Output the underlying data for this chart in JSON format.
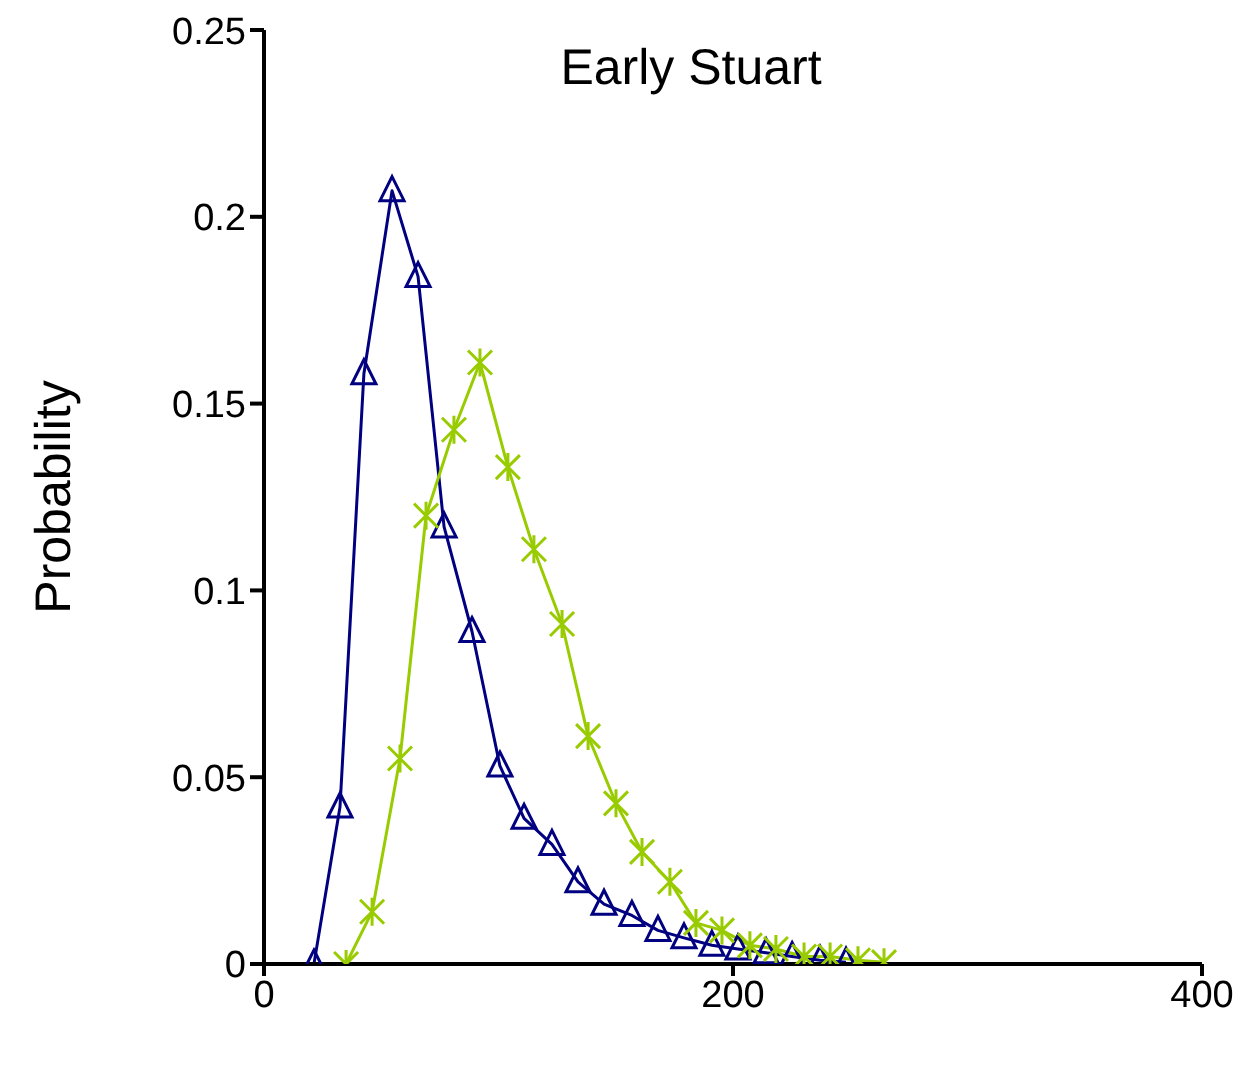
{
  "chart_data": {
    "type": "line",
    "title": "Early Stuart",
    "ylabel": "Probability",
    "xlim": [
      0,
      400
    ],
    "xticks": [
      0,
      200,
      400
    ],
    "ylim": [
      0,
      0.25
    ],
    "yticks": [
      0,
      0.05,
      0.1,
      0.15,
      0.2,
      0.25
    ],
    "grid": false,
    "series": [
      {
        "color": "#000080",
        "marker": "triangle",
        "x": [
          21.3,
          32.4,
          42.6,
          54.6,
          65.7,
          76.8,
          88.7,
          100.6,
          110.9,
          122.8,
          133.9,
          145,
          156.9,
          168,
          179.1,
          191,
          202.1,
          214.1,
          225.2,
          237.1,
          248.2
        ],
        "values": [
          0,
          0.042,
          0.158,
          0.207,
          0.184,
          0.117,
          0.089,
          0.053,
          0.039,
          0.032,
          0.022,
          0.016,
          0.013,
          0.009,
          0.007,
          0.005,
          0.004,
          0.003,
          0.002,
          0.001,
          0.0005
        ]
      },
      {
        "color": "#99cc00",
        "marker": "cross",
        "x": [
          35,
          46.1,
          58,
          69.1,
          81,
          92.1,
          104,
          115.1,
          127.1,
          138.2,
          150.1,
          161.2,
          173.1,
          184.2,
          195.3,
          207.2,
          218.3,
          230.3,
          241.4,
          253.3,
          264.4
        ],
        "values": [
          0,
          0.014,
          0.055,
          0.12,
          0.143,
          0.161,
          0.133,
          0.111,
          0.091,
          0.061,
          0.043,
          0.03,
          0.022,
          0.011,
          0.009,
          0.005,
          0.004,
          0.002,
          0.002,
          0.001,
          0.0005
        ]
      }
    ]
  }
}
